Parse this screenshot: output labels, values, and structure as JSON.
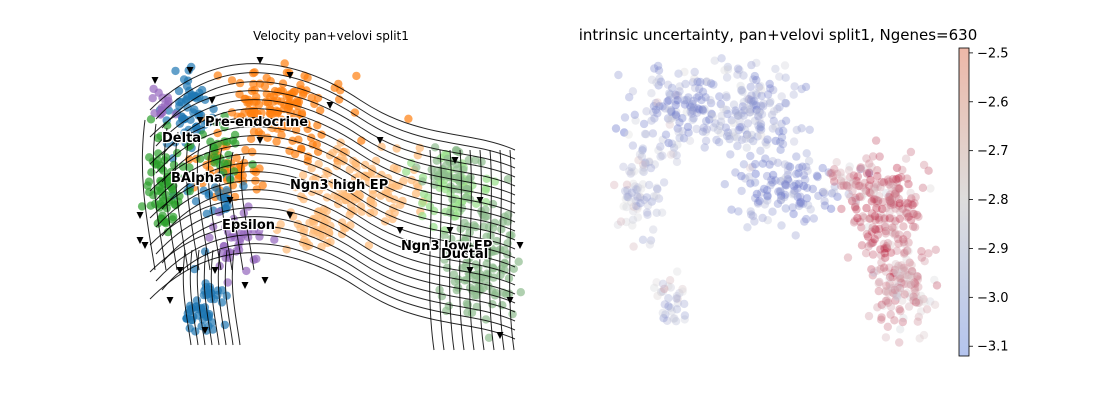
{
  "chart_data": [
    {
      "type": "scatter",
      "title": "Velocity pan+velovi split1",
      "xlabel": "",
      "ylabel": "",
      "grid": false,
      "streamlines": true,
      "clusters": [
        {
          "name": "Pre-endocrine",
          "color": "#ff7f0e"
        },
        {
          "name": "Delta",
          "color": "#1f77b4"
        },
        {
          "name": "BAlpha",
          "color": "#2ca02c"
        },
        {
          "name": "Ngn3 high EP",
          "color": "#ffbb78"
        },
        {
          "name": "Epsilon",
          "color": "#9467bd"
        },
        {
          "name": "Ngn3 low EP",
          "color": "#98df8a"
        },
        {
          "name": "Ductal",
          "color": "#8fbc8f"
        }
      ]
    },
    {
      "type": "scatter",
      "title": "intrinsic uncertainty, pan+velovi split1, Ngenes=630",
      "colorbar": {
        "colormap": "coolwarm",
        "min": -3.12,
        "max": -2.49,
        "ticks": [
          -2.5,
          -2.6,
          -2.7,
          -2.8,
          -2.9,
          -3.0,
          -3.1
        ],
        "tick_labels": [
          "−2.5",
          "−2.6",
          "−2.7",
          "−2.8",
          "−2.9",
          "−3.0",
          "−3.1"
        ]
      },
      "grid": false
    }
  ]
}
